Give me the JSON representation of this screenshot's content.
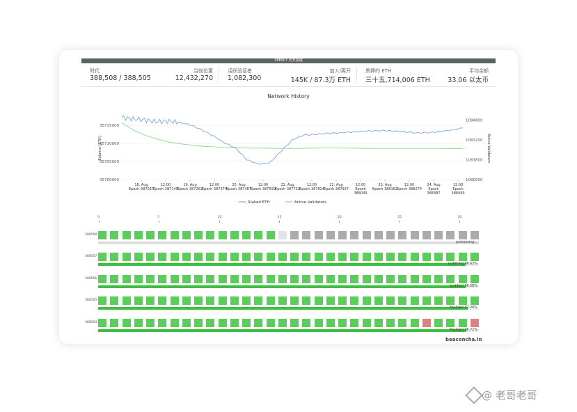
{
  "header": {
    "bar_text": "388507 交叉完成",
    "stats": [
      {
        "label_left": "时代",
        "value_left": "388,508 / 388,505",
        "label_right": "当前位置",
        "value_right": "12,432,270"
      },
      {
        "label_left": "活跃验证者",
        "value_left": "1,082,300",
        "label_right": "加入/离开",
        "value_right": "145K / 87.3万 ETH"
      },
      {
        "label_left": "质押的 ETH",
        "value_left": "三十五,714,006 ETH",
        "label_right": "平均余额",
        "value_right": "33.06 以太币"
      }
    ]
  },
  "chart_data": {
    "type": "line",
    "title": "Network History",
    "ylabel_left": "Balance [ETH]",
    "ylabel_right": "Active Validators",
    "left_ticks": [
      "35715000",
      "35710000",
      "35705000",
      "35700000"
    ],
    "right_ticks": [
      "1084800",
      "1083200",
      "1081600",
      "1080000"
    ],
    "x_ticks": [
      [
        "18. Aug",
        "Epoch 387037"
      ],
      [
        "12:00",
        "Epoch 387149"
      ],
      [
        "19. Aug",
        "Epoch 387262"
      ],
      [
        "12:00",
        "Epoch 387374"
      ],
      [
        "20. Aug",
        "Epoch 387487"
      ],
      [
        "12:00",
        "Epoch 387599"
      ],
      [
        "21. Aug",
        "Epoch 387712"
      ],
      [
        "12:00",
        "Epoch 387824"
      ],
      [
        "22. Aug",
        "Epoch 387937"
      ],
      [
        "12:00",
        "Epoch",
        "388049"
      ],
      [
        "23. Aug",
        "Epoch 388162"
      ],
      [
        "12:00",
        "Epoch 388274"
      ],
      [
        "24. Aug",
        "Epoch",
        "388387"
      ],
      [
        "12:00",
        "Epoch",
        "388499"
      ]
    ],
    "series": [
      {
        "name": "Staked ETH",
        "color": "#7aa5dc",
        "values": [
          35717200,
          35716800,
          35716500,
          35716000,
          35716200,
          35715800,
          35715200,
          35713800,
          35712200,
          35710200,
          35708800,
          35705500,
          35704300,
          35704600,
          35707800,
          35711000,
          35712300,
          35712500,
          35712800,
          35712900,
          35713100,
          35713300,
          35713500,
          35713600,
          35713400,
          35713200,
          35712900,
          35713000,
          35713300,
          35713700,
          35714300
        ]
      },
      {
        "name": "Active Validators",
        "color": "#8cd68c",
        "values": [
          1084600,
          1084000,
          1083600,
          1083300,
          1083050,
          1082900,
          1082800,
          1082700,
          1082650,
          1082600,
          1082570,
          1082550,
          1082540,
          1082530,
          1082520,
          1082520,
          1082530,
          1082540,
          1082550,
          1082550,
          1082540,
          1082530,
          1082520,
          1082520,
          1082520,
          1082520,
          1082520,
          1082520,
          1082520,
          1082510,
          1082500
        ]
      }
    ]
  },
  "slot_ticks": [
    "0",
    "5",
    "10",
    "15",
    "20",
    "25",
    "30"
  ],
  "epochs": [
    {
      "id": "388508",
      "status": "processing...",
      "progress": 1.0,
      "bar_color": "#dcdcdc",
      "slots": "GGGGGGGGGGGGGGGWggggggggggggggggg"
    },
    {
      "id": "388507",
      "status": "justifying 96.63%",
      "progress": 0.9663,
      "bar_color": "#3fbf3f",
      "slots": "GGGGGGGGGGGGGGGGGGGGGGGGGGGGGGGG"
    },
    {
      "id": "388506",
      "status": "justified 96.58%",
      "progress": 0.9658,
      "bar_color": "#3fbf3f",
      "slots": "GGGGGGGGGGGGGGGGGGGGGGGGGGGGGGGG"
    },
    {
      "id": "388505",
      "status": "finalized 97.20%",
      "progress": 0.972,
      "bar_color": "#3fbf3f",
      "slots": "GGGGGGGGGGGGGGGGGGGGGGGGGGGGGGGG"
    },
    {
      "id": "388504",
      "status": "finalized 96.72%",
      "progress": 0.9672,
      "bar_color": "#3fbf3f",
      "slots": "GGGGGGGGGGGGGGGGGGGGGGGGGGGRGGGR"
    }
  ],
  "legend": {
    "staked": "Staked ETH",
    "validators": "Active Validators"
  },
  "footer": "beaconcha.in",
  "watermark": "@ 老哥老哥"
}
